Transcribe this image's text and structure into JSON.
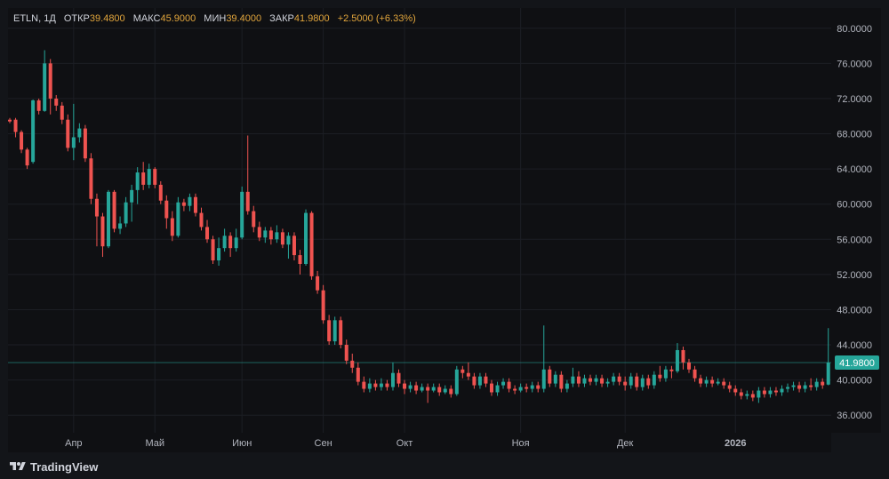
{
  "legend": {
    "symbol": "ETLN, 1Д",
    "open_label": "ОТКР",
    "open_value": "39.4800",
    "high_label": "МАКС",
    "high_value": "45.9000",
    "low_label": "МИН",
    "low_value": "39.4000",
    "close_label": "ЗАКР",
    "close_value": "41.9800",
    "change": "+2.5000 (+6.33%)"
  },
  "footer": {
    "brand": "TradingView"
  },
  "colors": {
    "up": "#26a69a",
    "down": "#ef5350",
    "grid": "#1c1e24",
    "axis_text": "#b2b5be",
    "last_price_bg": "#26a69a"
  },
  "chart_data": {
    "type": "candlestick",
    "title": "ETLN, 1Д",
    "ylim": [
      34.0,
      82.3
    ],
    "price_ticks": [
      "80.0000",
      "76.0000",
      "72.0000",
      "68.0000",
      "64.0000",
      "60.0000",
      "56.0000",
      "52.0000",
      "48.0000",
      "44.0000",
      "40.0000",
      "36.0000"
    ],
    "time_ticks": [
      {
        "label": "Апр",
        "index": 11
      },
      {
        "label": "Май",
        "index": 25
      },
      {
        "label": "Июн",
        "index": 40
      },
      {
        "label": "Сен",
        "index": 54
      },
      {
        "label": "Окт",
        "index": 68
      },
      {
        "label": "Ноя",
        "index": 88
      },
      {
        "label": "Дек",
        "index": 106
      },
      {
        "label": "2026",
        "index": 125
      }
    ],
    "last_price": 41.98,
    "last_price_label": "41.9800",
    "candles": [
      [
        69.6,
        69.4,
        69.8,
        69.2
      ],
      [
        69.6,
        68.2,
        69.8,
        67.6
      ],
      [
        68.2,
        66.2,
        68.4,
        65.8
      ],
      [
        66.2,
        64.4,
        66.4,
        64.0
      ],
      [
        64.8,
        71.8,
        71.9,
        64.6
      ],
      [
        71.8,
        70.6,
        72.0,
        70.2
      ],
      [
        70.6,
        76.0,
        77.5,
        70.5
      ],
      [
        76.0,
        72.0,
        76.5,
        70.2
      ],
      [
        72.0,
        71.2,
        72.4,
        70.6
      ],
      [
        71.2,
        69.6,
        71.6,
        69.1
      ],
      [
        69.6,
        66.4,
        70.2,
        66.0
      ],
      [
        66.4,
        67.6,
        71.4,
        65.0
      ],
      [
        67.6,
        68.6,
        69.2,
        67.0
      ],
      [
        68.6,
        65.2,
        69.0,
        64.8
      ],
      [
        65.2,
        60.6,
        65.8,
        60.0
      ],
      [
        60.6,
        58.6,
        61.2,
        55.2
      ],
      [
        58.6,
        55.2,
        59.0,
        54.0
      ],
      [
        55.2,
        61.4,
        61.6,
        55.0
      ],
      [
        61.4,
        57.2,
        61.6,
        56.8
      ],
      [
        57.2,
        57.8,
        58.6,
        56.6
      ],
      [
        57.8,
        60.2,
        60.8,
        57.4
      ],
      [
        60.2,
        61.6,
        62.2,
        58.0
      ],
      [
        61.6,
        63.6,
        64.2,
        60.0
      ],
      [
        63.6,
        62.2,
        64.8,
        61.6
      ],
      [
        62.2,
        64.0,
        64.6,
        61.8
      ],
      [
        64.0,
        62.2,
        64.2,
        61.8
      ],
      [
        62.2,
        60.4,
        62.6,
        60.0
      ],
      [
        60.4,
        58.4,
        61.0,
        57.2
      ],
      [
        58.4,
        56.4,
        59.2,
        55.8
      ],
      [
        56.4,
        60.2,
        60.8,
        56.2
      ],
      [
        60.2,
        59.8,
        60.6,
        59.2
      ],
      [
        59.8,
        60.8,
        61.2,
        59.2
      ],
      [
        60.8,
        59.0,
        61.2,
        58.6
      ],
      [
        59.0,
        57.4,
        59.6,
        57.0
      ],
      [
        57.4,
        56.0,
        58.2,
        55.6
      ],
      [
        56.0,
        53.6,
        56.4,
        53.2
      ],
      [
        53.6,
        55.0,
        56.2,
        53.0
      ],
      [
        55.0,
        56.4,
        57.2,
        54.6
      ],
      [
        56.4,
        55.0,
        56.8,
        54.0
      ],
      [
        55.0,
        56.2,
        57.2,
        54.6
      ],
      [
        56.2,
        61.4,
        62.0,
        56.0
      ],
      [
        61.4,
        59.2,
        67.8,
        58.8
      ],
      [
        59.2,
        57.4,
        59.8,
        56.8
      ],
      [
        57.4,
        56.2,
        58.0,
        55.8
      ],
      [
        56.2,
        57.0,
        57.4,
        55.6
      ],
      [
        57.0,
        56.0,
        57.4,
        55.4
      ],
      [
        56.0,
        56.8,
        57.6,
        55.6
      ],
      [
        56.8,
        55.4,
        57.2,
        55.0
      ],
      [
        55.4,
        56.4,
        56.8,
        53.8
      ],
      [
        56.4,
        54.2,
        56.8,
        53.6
      ],
      [
        54.2,
        53.2,
        54.8,
        52.0
      ],
      [
        53.2,
        59.0,
        59.4,
        53.0
      ],
      [
        59.0,
        51.8,
        59.2,
        51.4
      ],
      [
        51.8,
        50.2,
        52.4,
        49.8
      ],
      [
        50.2,
        46.8,
        50.8,
        46.4
      ],
      [
        46.8,
        44.4,
        47.4,
        44.0
      ],
      [
        44.4,
        46.8,
        47.2,
        44.0
      ],
      [
        46.8,
        44.0,
        47.2,
        43.6
      ],
      [
        44.0,
        42.2,
        44.6,
        41.8
      ],
      [
        42.2,
        41.4,
        43.0,
        40.8
      ],
      [
        41.4,
        39.8,
        42.0,
        39.4
      ],
      [
        39.8,
        39.0,
        40.4,
        38.6
      ],
      [
        39.0,
        39.6,
        40.2,
        38.6
      ],
      [
        39.6,
        39.2,
        40.0,
        38.8
      ],
      [
        39.2,
        39.6,
        40.2,
        38.8
      ],
      [
        39.6,
        39.2,
        40.0,
        38.8
      ],
      [
        39.2,
        40.8,
        42.0,
        38.8
      ],
      [
        40.8,
        39.6,
        41.2,
        39.2
      ],
      [
        39.6,
        39.0,
        40.0,
        38.4
      ],
      [
        39.0,
        39.4,
        39.8,
        38.6
      ],
      [
        39.4,
        38.8,
        39.8,
        38.4
      ],
      [
        38.8,
        39.2,
        39.6,
        38.6
      ],
      [
        39.2,
        38.8,
        39.6,
        37.4
      ],
      [
        38.8,
        39.2,
        39.6,
        38.6
      ],
      [
        39.2,
        38.6,
        39.6,
        38.2
      ],
      [
        38.6,
        39.0,
        39.4,
        38.4
      ],
      [
        39.0,
        38.4,
        39.4,
        38.0
      ],
      [
        38.4,
        41.2,
        41.6,
        38.2
      ],
      [
        41.2,
        40.8,
        41.6,
        40.2
      ],
      [
        40.8,
        40.4,
        42.0,
        40.0
      ],
      [
        40.4,
        39.4,
        40.8,
        39.0
      ],
      [
        39.4,
        40.4,
        40.8,
        39.0
      ],
      [
        40.4,
        39.6,
        40.8,
        39.2
      ],
      [
        39.6,
        38.6,
        40.0,
        38.2
      ],
      [
        38.6,
        39.4,
        39.8,
        38.2
      ],
      [
        39.4,
        39.8,
        40.2,
        39.0
      ],
      [
        39.8,
        39.0,
        40.2,
        38.6
      ],
      [
        39.0,
        38.8,
        39.4,
        38.4
      ],
      [
        38.8,
        39.2,
        39.6,
        38.6
      ],
      [
        39.2,
        39.0,
        39.6,
        38.6
      ],
      [
        39.0,
        39.4,
        39.8,
        38.6
      ],
      [
        39.4,
        39.0,
        39.8,
        38.6
      ],
      [
        39.0,
        41.2,
        46.2,
        38.6
      ],
      [
        41.2,
        39.6,
        41.6,
        39.2
      ],
      [
        39.6,
        40.6,
        41.0,
        39.2
      ],
      [
        40.6,
        39.0,
        41.0,
        38.6
      ],
      [
        39.0,
        39.6,
        40.0,
        38.6
      ],
      [
        39.6,
        40.4,
        41.4,
        39.2
      ],
      [
        40.4,
        39.6,
        41.0,
        39.2
      ],
      [
        39.6,
        40.2,
        40.6,
        39.2
      ],
      [
        40.2,
        39.8,
        40.6,
        39.4
      ],
      [
        39.8,
        40.2,
        40.6,
        39.4
      ],
      [
        40.2,
        39.6,
        40.6,
        39.2
      ],
      [
        39.6,
        39.8,
        40.2,
        39.2
      ],
      [
        39.8,
        40.4,
        40.8,
        39.4
      ],
      [
        40.4,
        39.8,
        40.8,
        39.4
      ],
      [
        39.8,
        39.4,
        40.4,
        38.8
      ],
      [
        39.4,
        40.4,
        40.8,
        39.0
      ],
      [
        40.4,
        39.2,
        40.8,
        38.8
      ],
      [
        39.2,
        40.2,
        40.6,
        38.8
      ],
      [
        40.2,
        39.4,
        40.6,
        39.0
      ],
      [
        39.4,
        40.6,
        41.0,
        39.0
      ],
      [
        40.6,
        40.2,
        41.6,
        39.8
      ],
      [
        40.2,
        41.2,
        41.6,
        39.8
      ],
      [
        41.2,
        41.0,
        41.6,
        40.2
      ],
      [
        41.0,
        43.4,
        44.2,
        40.8
      ],
      [
        43.4,
        42.0,
        43.8,
        41.2
      ],
      [
        42.0,
        41.2,
        42.4,
        40.8
      ],
      [
        41.2,
        40.2,
        41.6,
        39.8
      ],
      [
        40.2,
        39.6,
        40.6,
        39.2
      ],
      [
        39.6,
        40.0,
        40.4,
        39.2
      ],
      [
        40.0,
        39.6,
        40.4,
        39.2
      ],
      [
        39.6,
        39.8,
        40.2,
        39.4
      ],
      [
        39.8,
        39.4,
        40.2,
        39.0
      ],
      [
        39.4,
        39.0,
        39.8,
        38.6
      ],
      [
        39.0,
        38.6,
        39.4,
        38.2
      ],
      [
        38.6,
        38.2,
        39.0,
        37.8
      ],
      [
        38.2,
        38.4,
        38.8,
        37.8
      ],
      [
        38.4,
        38.0,
        38.8,
        37.6
      ],
      [
        38.0,
        38.8,
        39.2,
        37.4
      ],
      [
        38.8,
        38.4,
        39.2,
        38.0
      ],
      [
        38.4,
        38.8,
        39.2,
        38.0
      ],
      [
        38.8,
        38.6,
        39.2,
        38.2
      ],
      [
        38.6,
        39.0,
        39.4,
        38.2
      ],
      [
        39.0,
        39.2,
        39.6,
        38.6
      ],
      [
        39.2,
        39.4,
        39.8,
        38.8
      ],
      [
        39.4,
        39.0,
        39.8,
        38.6
      ],
      [
        39.0,
        39.4,
        39.8,
        38.6
      ],
      [
        39.4,
        39.2,
        40.2,
        38.8
      ],
      [
        39.2,
        39.8,
        40.2,
        38.8
      ],
      [
        39.8,
        39.4,
        40.2,
        39.0
      ],
      [
        39.48,
        41.98,
        45.9,
        39.4
      ]
    ]
  }
}
